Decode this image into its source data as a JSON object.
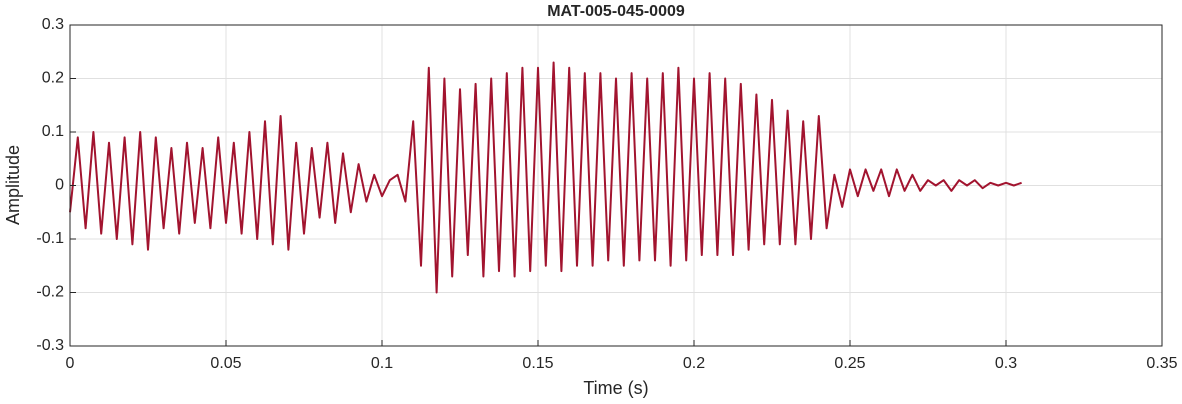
{
  "chart_data": {
    "type": "line",
    "title": "MAT-005-045-0009",
    "x_label": "Time (s)",
    "y_label": "Amplitude",
    "x": [
      0,
      0.0025,
      0.005,
      0.0075,
      0.01,
      0.0125,
      0.015,
      0.0175,
      0.02,
      0.0225,
      0.025,
      0.0275,
      0.03,
      0.0325,
      0.035,
      0.0375,
      0.04,
      0.0425,
      0.045,
      0.0475,
      0.05,
      0.0525,
      0.055,
      0.0575,
      0.06,
      0.0625,
      0.065,
      0.0675,
      0.07,
      0.0725,
      0.075,
      0.0775,
      0.08,
      0.0825,
      0.085,
      0.0875,
      0.09,
      0.0925,
      0.095,
      0.0975,
      0.1,
      0.1025,
      0.105,
      0.1075,
      0.11,
      0.1125,
      0.115,
      0.1175,
      0.12,
      0.1225,
      0.125,
      0.1275,
      0.13,
      0.1325,
      0.135,
      0.1375,
      0.14,
      0.1425,
      0.145,
      0.1475,
      0.15,
      0.1525,
      0.155,
      0.1575,
      0.16,
      0.1625,
      0.165,
      0.1675,
      0.17,
      0.1725,
      0.175,
      0.1775,
      0.18,
      0.1825,
      0.185,
      0.1875,
      0.19,
      0.1925,
      0.195,
      0.1975,
      0.2,
      0.2025,
      0.205,
      0.2075,
      0.21,
      0.2125,
      0.215,
      0.2175,
      0.22,
      0.2225,
      0.225,
      0.2275,
      0.23,
      0.2325,
      0.235,
      0.2375,
      0.24,
      0.2425,
      0.245,
      0.2475,
      0.25,
      0.2525,
      0.255,
      0.2575,
      0.26,
      0.2625,
      0.265,
      0.2675,
      0.27,
      0.2725,
      0.275,
      0.2775,
      0.28,
      0.2825,
      0.285,
      0.2875,
      0.29,
      0.2925,
      0.295,
      0.2975,
      0.3,
      0.3025,
      0.305
    ],
    "series": [
      {
        "color": "#a2142f",
        "values": [
          -0.05,
          0.09,
          -0.08,
          0.1,
          -0.09,
          0.08,
          -0.1,
          0.09,
          -0.11,
          0.1,
          -0.12,
          0.09,
          -0.08,
          0.07,
          -0.09,
          0.08,
          -0.07,
          0.07,
          -0.08,
          0.09,
          -0.07,
          0.08,
          -0.09,
          0.1,
          -0.1,
          0.12,
          -0.11,
          0.13,
          -0.12,
          0.08,
          -0.09,
          0.07,
          -0.06,
          0.08,
          -0.07,
          0.06,
          -0.05,
          0.04,
          -0.03,
          0.02,
          -0.02,
          0.01,
          0.02,
          -0.03,
          0.12,
          -0.15,
          0.22,
          -0.2,
          0.2,
          -0.17,
          0.18,
          -0.13,
          0.19,
          -0.17,
          0.2,
          -0.16,
          0.21,
          -0.17,
          0.22,
          -0.16,
          0.22,
          -0.15,
          0.23,
          -0.16,
          0.22,
          -0.15,
          0.21,
          -0.15,
          0.21,
          -0.14,
          0.2,
          -0.15,
          0.21,
          -0.14,
          0.2,
          -0.14,
          0.21,
          -0.15,
          0.22,
          -0.14,
          0.2,
          -0.13,
          0.21,
          -0.13,
          0.2,
          -0.13,
          0.19,
          -0.12,
          0.17,
          -0.11,
          0.16,
          -0.11,
          0.14,
          -0.11,
          0.12,
          -0.1,
          0.13,
          -0.08,
          0.02,
          -0.04,
          0.03,
          -0.02,
          0.03,
          -0.01,
          0.03,
          -0.02,
          0.03,
          -0.01,
          0.02,
          -0.01,
          0.01,
          0,
          0.01,
          -0.01,
          0.01,
          0,
          0.01,
          -0.005,
          0.005,
          0,
          0.005,
          0,
          0.005
        ]
      }
    ],
    "xlim": [
      0,
      0.35
    ],
    "xticks": [
      0,
      0.05,
      0.1,
      0.15,
      0.2,
      0.25,
      0.3,
      0.35
    ],
    "ylim": [
      -0.3,
      0.3
    ],
    "yticks": [
      -0.3,
      -0.2,
      -0.1,
      0,
      0.1,
      0.2,
      0.3
    ],
    "grid": true
  }
}
